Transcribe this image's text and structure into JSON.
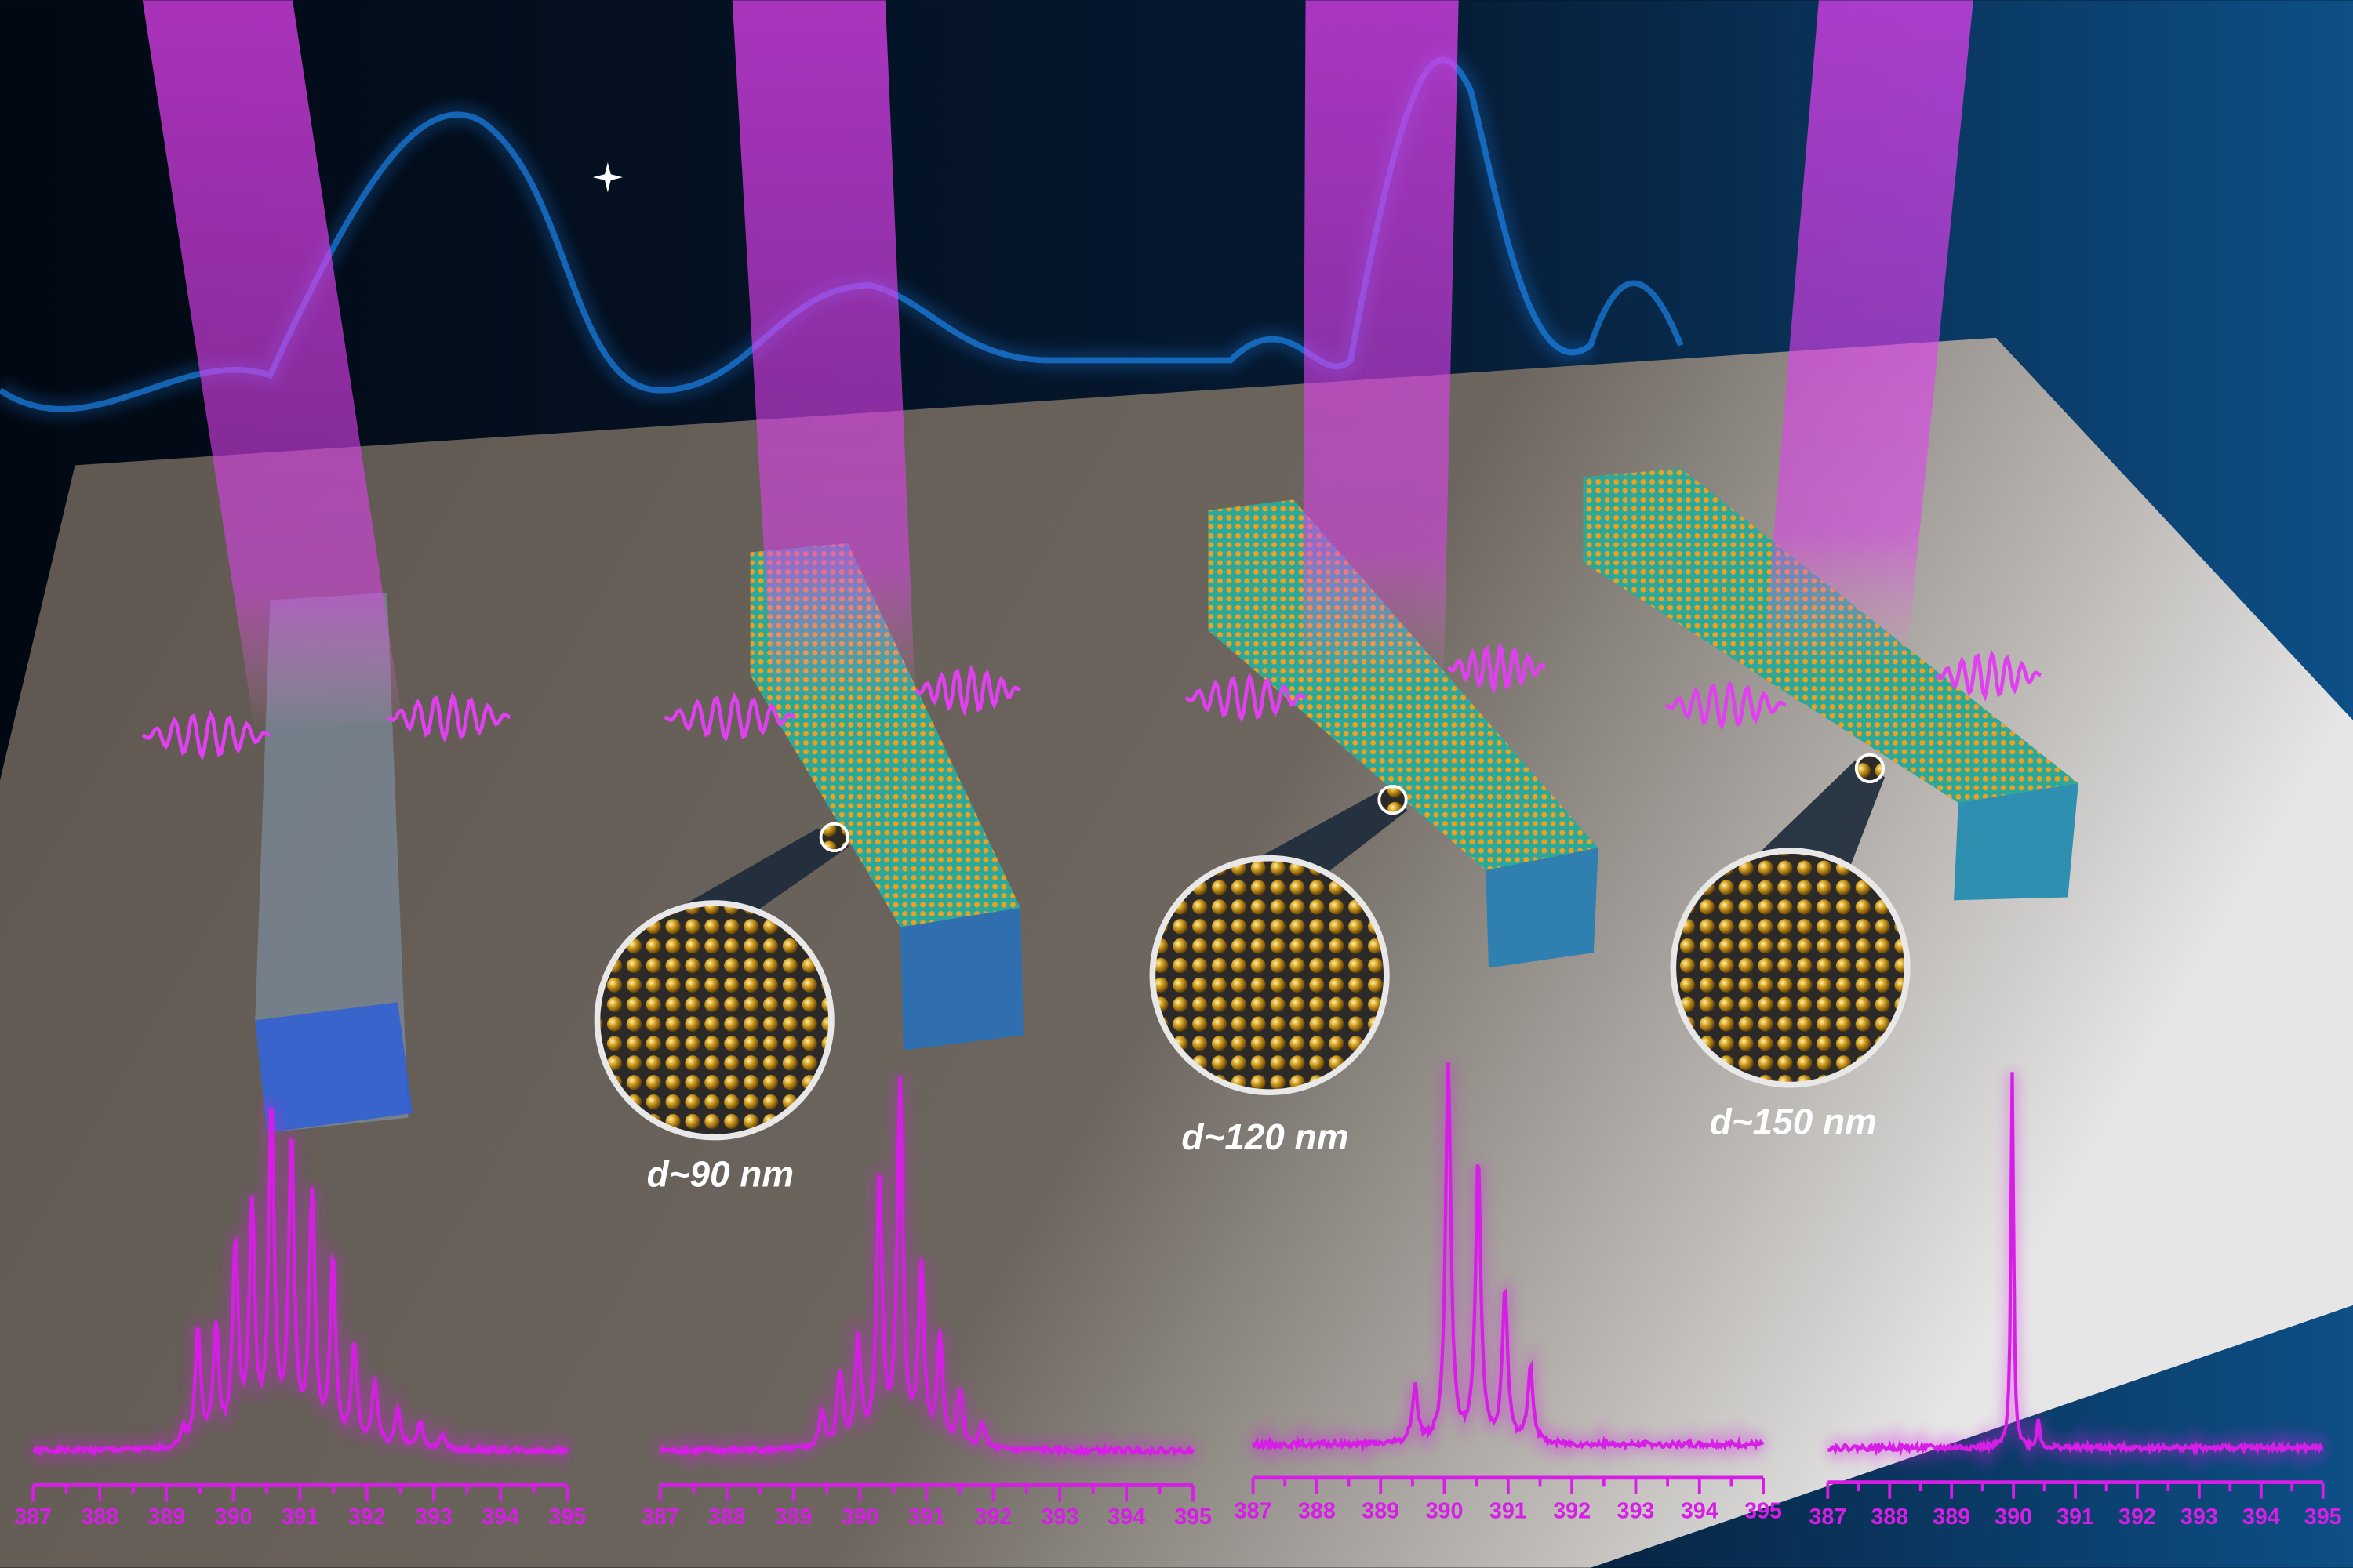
{
  "labels": {
    "wire2": "d~90 nm",
    "wire3": "d~120 nm",
    "wire4": "d~150 nm"
  },
  "colors": {
    "spectrum": "#d61ee6",
    "beam": "#e040f0",
    "background": "#050d1c",
    "background_wave": "#1e8fff",
    "substrate": "#6a625a",
    "nanoparticle": "#d4a020"
  },
  "chart_data": [
    {
      "type": "line",
      "xlabel": "",
      "ylabel": "",
      "xlim": [
        387,
        395
      ],
      "xticks": [
        "387",
        "388",
        "389",
        "390",
        "391",
        "392",
        "393",
        "394",
        "395"
      ],
      "peaks": [
        [
          389.25,
          0.05
        ],
        [
          389.47,
          0.35
        ],
        [
          389.74,
          0.35
        ],
        [
          390.03,
          0.6
        ],
        [
          390.28,
          0.7
        ],
        [
          390.57,
          1.0
        ],
        [
          390.87,
          0.9
        ],
        [
          391.18,
          0.75
        ],
        [
          391.49,
          0.55
        ],
        [
          391.81,
          0.3
        ],
        [
          392.12,
          0.2
        ],
        [
          392.46,
          0.12
        ],
        [
          392.8,
          0.08
        ],
        [
          393.13,
          0.04
        ]
      ]
    },
    {
      "type": "line",
      "xlabel": "",
      "ylabel": "",
      "xlim": [
        387,
        395
      ],
      "xticks": [
        "387",
        "388",
        "389",
        "390",
        "391",
        "392",
        "393",
        "394",
        "395"
      ],
      "peaks": [
        [
          389.43,
          0.1
        ],
        [
          389.7,
          0.2
        ],
        [
          389.97,
          0.3
        ],
        [
          390.29,
          0.75
        ],
        [
          390.6,
          1.0
        ],
        [
          390.92,
          0.5
        ],
        [
          391.2,
          0.3
        ],
        [
          391.5,
          0.15
        ],
        [
          391.84,
          0.07
        ]
      ]
    },
    {
      "type": "line",
      "xlabel": "",
      "ylabel": "",
      "xlim": [
        387,
        395
      ],
      "xticks": [
        "387",
        "388",
        "389",
        "390",
        "391",
        "392",
        "393",
        "394",
        "395"
      ],
      "peaks": [
        [
          389.54,
          0.15
        ],
        [
          390.06,
          1.0
        ],
        [
          390.53,
          0.75
        ],
        [
          390.95,
          0.4
        ],
        [
          391.35,
          0.2
        ]
      ]
    },
    {
      "type": "line",
      "xlabel": "",
      "ylabel": "",
      "xlim": [
        387,
        395
      ],
      "xticks": [
        "387",
        "388",
        "389",
        "390",
        "391",
        "392",
        "393",
        "394",
        "395"
      ],
      "peaks": [
        [
          389.98,
          1.0
        ],
        [
          390.4,
          0.08
        ]
      ]
    }
  ]
}
